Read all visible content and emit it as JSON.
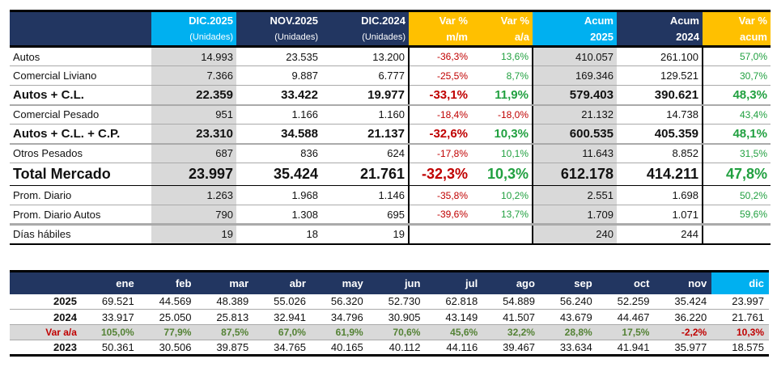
{
  "summary": {
    "headers": {
      "dic2025": {
        "title": "DIC.2025",
        "sub": "(Unidades)"
      },
      "nov2025": {
        "title": "NOV.2025",
        "sub": "(Unidades)"
      },
      "dic2024": {
        "title": "DIC.2024",
        "sub": "(Unidades)"
      },
      "var_mm": {
        "title": "Var %",
        "sub": "m/m"
      },
      "var_aa": {
        "title": "Var %",
        "sub": "a/a"
      },
      "acum2025": {
        "title": "Acum",
        "sub": "2025"
      },
      "acum2024": {
        "title": "Acum",
        "sub": "2024"
      },
      "var_acum": {
        "title": "Var %",
        "sub": "acum"
      }
    },
    "rows": [
      {
        "label": "Autos",
        "dic2025": "14.993",
        "nov2025": "23.535",
        "dic2024": "13.200",
        "var_mm": "-36,3%",
        "var_aa": "13,6%",
        "acum2025": "410.057",
        "acum2024": "261.100",
        "var_acum": "57,0%"
      },
      {
        "label": "Comercial Liviano",
        "dic2025": "7.366",
        "nov2025": "9.887",
        "dic2024": "6.777",
        "var_mm": "-25,5%",
        "var_aa": "8,7%",
        "acum2025": "169.346",
        "acum2024": "129.521",
        "var_acum": "30,7%"
      },
      {
        "label": "Autos + C.L.",
        "dic2025": "22.359",
        "nov2025": "33.422",
        "dic2024": "19.977",
        "var_mm": "-33,1%",
        "var_aa": "11,9%",
        "acum2025": "579.403",
        "acum2024": "390.621",
        "var_acum": "48,3%"
      },
      {
        "label": "Comercial Pesado",
        "dic2025": "951",
        "nov2025": "1.166",
        "dic2024": "1.160",
        "var_mm": "-18,4%",
        "var_aa": "-18,0%",
        "acum2025": "21.132",
        "acum2024": "14.738",
        "var_acum": "43,4%"
      },
      {
        "label": "Autos + C.L. + C.P.",
        "dic2025": "23.310",
        "nov2025": "34.588",
        "dic2024": "21.137",
        "var_mm": "-32,6%",
        "var_aa": "10,3%",
        "acum2025": "600.535",
        "acum2024": "405.359",
        "var_acum": "48,1%"
      },
      {
        "label": "Otros Pesados",
        "dic2025": "687",
        "nov2025": "836",
        "dic2024": "624",
        "var_mm": "-17,8%",
        "var_aa": "10,1%",
        "acum2025": "11.643",
        "acum2024": "8.852",
        "var_acum": "31,5%"
      },
      {
        "label": "Total Mercado",
        "dic2025": "23.997",
        "nov2025": "35.424",
        "dic2024": "21.761",
        "var_mm": "-32,3%",
        "var_aa": "10,3%",
        "acum2025": "612.178",
        "acum2024": "414.211",
        "var_acum": "47,8%"
      },
      {
        "label": "Prom. Diario",
        "dic2025": "1.263",
        "nov2025": "1.968",
        "dic2024": "1.146",
        "var_mm": "-35,8%",
        "var_aa": "10,2%",
        "acum2025": "2.551",
        "acum2024": "1.698",
        "var_acum": "50,2%"
      },
      {
        "label": "Prom. Diario Autos",
        "dic2025": "790",
        "nov2025": "1.308",
        "dic2024": "695",
        "var_mm": "-39,6%",
        "var_aa": "13,7%",
        "acum2025": "1.709",
        "acum2024": "1.071",
        "var_acum": "59,6%"
      },
      {
        "label": "Días hábiles",
        "dic2025": "19",
        "nov2025": "18",
        "dic2024": "19",
        "var_mm": "",
        "var_aa": "",
        "acum2025": "240",
        "acum2024": "244",
        "var_acum": ""
      }
    ]
  },
  "monthly": {
    "months": [
      "ene",
      "feb",
      "mar",
      "abr",
      "may",
      "jun",
      "jul",
      "ago",
      "sep",
      "oct",
      "nov",
      "dic"
    ],
    "rows": [
      {
        "label": "2025",
        "values": [
          "69.521",
          "44.569",
          "48.389",
          "55.026",
          "56.320",
          "52.730",
          "62.818",
          "54.889",
          "56.240",
          "52.259",
          "35.424",
          "23.997"
        ]
      },
      {
        "label": "2024",
        "values": [
          "33.917",
          "25.050",
          "25.813",
          "32.941",
          "34.796",
          "30.905",
          "43.149",
          "41.507",
          "43.679",
          "44.467",
          "36.220",
          "21.761"
        ]
      },
      {
        "label": "Var a/a",
        "values": [
          "105,0%",
          "77,9%",
          "87,5%",
          "67,0%",
          "61,9%",
          "70,6%",
          "45,6%",
          "32,2%",
          "28,8%",
          "17,5%",
          "-2,2%",
          "10,3%"
        ]
      },
      {
        "label": "2023",
        "values": [
          "50.361",
          "30.506",
          "39.875",
          "34.765",
          "40.165",
          "40.112",
          "44.116",
          "39.467",
          "33.634",
          "41.941",
          "35.977",
          "18.575"
        ]
      }
    ]
  },
  "colors": {
    "header_navy": "#223661",
    "header_cyan": "#00b0f0",
    "header_gold": "#ffc000",
    "negative": "#c00000",
    "positive": "#21a040",
    "shade": "#d9d9d9"
  }
}
